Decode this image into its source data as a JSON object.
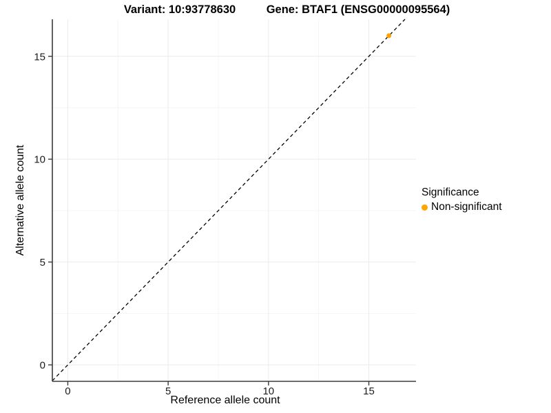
{
  "chart_data": {
    "type": "scatter",
    "titles": {
      "variant": "Variant: 10:93778630",
      "gene": "Gene: BTAF1 (ENSG00000095564)"
    },
    "xlabel": "Reference allele count",
    "ylabel": "Alternative allele count",
    "xlim": [
      -0.77,
      17.35
    ],
    "ylim": [
      -0.8,
      16.8
    ],
    "x_ticks": [
      0,
      5,
      10,
      15
    ],
    "y_ticks": [
      0,
      5,
      10,
      15
    ],
    "x_minor_gridlines": [
      2.5,
      7.5,
      12.5
    ],
    "y_minor_gridlines": [
      2.5,
      7.5,
      12.5
    ],
    "grid": "major+minor, light gray on white panel",
    "series": [
      {
        "name": "Non-significant",
        "color": "#FFA500",
        "marker": "circle",
        "points": [
          {
            "x": 16,
            "y": 16
          }
        ]
      }
    ],
    "reference_line": {
      "kind": "identity",
      "slope": 1,
      "intercept": 0,
      "style": "dashed",
      "color": "#000000"
    },
    "legend": {
      "title": "Significance",
      "position": "right",
      "entries": [
        {
          "label": "Non-significant",
          "color": "#FFA500"
        }
      ]
    }
  },
  "colors": {
    "point_orange": "#FFA500",
    "grid_major": "#EBEBEB",
    "grid_minor": "#F5F5F5",
    "axis_line": "#3A3A3A",
    "tick_text": "#1a1a1a",
    "background": "#FFFFFF"
  }
}
